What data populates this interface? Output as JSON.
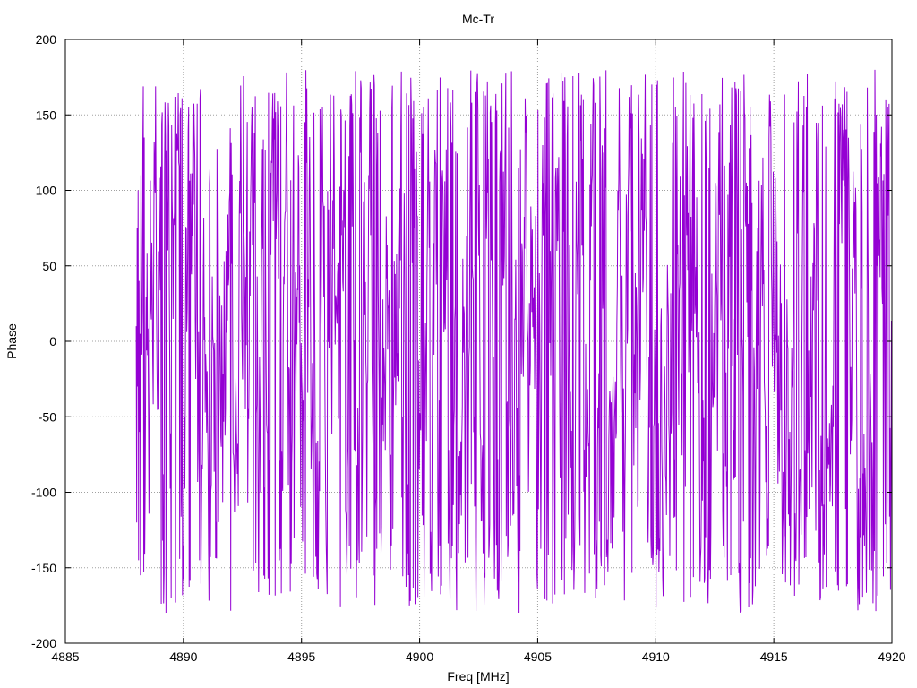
{
  "chart_data": {
    "type": "line",
    "title": "Mc-Tr",
    "xlabel": "Freq [MHz]",
    "ylabel": "Phase",
    "xlim": [
      4885,
      4920
    ],
    "ylim": [
      -200,
      200
    ],
    "xticks": [
      4885,
      4890,
      4895,
      4900,
      4905,
      4910,
      4915,
      4920
    ],
    "yticks": [
      -200,
      -150,
      -100,
      -50,
      0,
      50,
      100,
      150,
      200
    ],
    "grid": true,
    "series": [
      {
        "color": "#9400d3",
        "x_start": 4888.0,
        "x_end": 4920.0,
        "points": 1600,
        "values_description_range": [
          -180,
          180
        ],
        "x": [
          4888.0,
          4888.1,
          4888.2,
          4888.3,
          4888.4,
          4888.5,
          4888.6,
          4888.7,
          4888.8,
          4888.9,
          4889.0
        ],
        "values": [
          10,
          -120,
          75,
          -30,
          100,
          -145,
          40,
          -60,
          5,
          -155,
          110
        ]
      }
    ]
  }
}
